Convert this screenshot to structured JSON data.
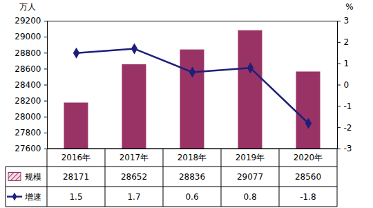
{
  "chart_data": {
    "type": "bar",
    "y_label": "万人",
    "y2_label": "%",
    "categories": [
      "2016年",
      "2017年",
      "2018年",
      "2019年",
      "2020年"
    ],
    "series": [
      {
        "name": "规模",
        "type": "bar",
        "color": "#993366",
        "values": [
          28171,
          28652,
          28836,
          29077,
          28560
        ]
      },
      {
        "name": "增速",
        "type": "line",
        "axis": "y2",
        "color": "#1f1f7a",
        "marker": "diamond",
        "values": [
          1.5,
          1.7,
          0.6,
          0.8,
          -1.8
        ]
      }
    ],
    "ylim": [
      27600,
      29200
    ],
    "yticks": [
      27600,
      27800,
      28000,
      28200,
      28400,
      28600,
      28800,
      29000,
      29200
    ],
    "y2lim": [
      -3,
      3
    ],
    "y2ticks": [
      -3,
      -2,
      -1,
      0,
      1,
      2,
      3
    ],
    "legend": "bottom",
    "grid": false
  }
}
